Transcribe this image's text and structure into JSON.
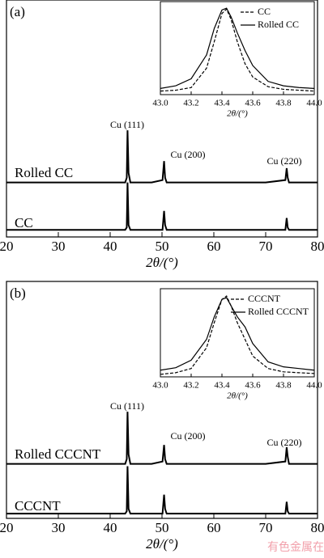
{
  "chart_data": [
    {
      "type": "line",
      "panel": "(a)",
      "xlabel": "2θ/(°)",
      "xlim": [
        20,
        80
      ],
      "xticks": [
        20,
        30,
        40,
        50,
        60,
        70,
        80
      ],
      "ylim": [
        0,
        100
      ],
      "x": [
        20,
        30,
        40,
        42.9,
        43.2,
        43.35,
        43.55,
        43.9,
        48,
        50.1,
        50.4,
        50.6,
        50.9,
        55,
        60,
        65,
        70,
        73.8,
        74.05,
        74.25,
        74.5,
        78,
        80
      ],
      "series": [
        {
          "name": "CC",
          "color": "#000000",
          "values": [
            3,
            3,
            3,
            3,
            4,
            23,
            5,
            3,
            3,
            3,
            11,
            5,
            3,
            3,
            3,
            3,
            3,
            3,
            8,
            4,
            3,
            3,
            3
          ]
        },
        {
          "name": "Rolled CC",
          "color": "#000000",
          "values": [
            23,
            23,
            23,
            23,
            25,
            45,
            27,
            23,
            23,
            24,
            32,
            25,
            23,
            23,
            23,
            23,
            23,
            24,
            29,
            25,
            23,
            23,
            23
          ]
        }
      ],
      "annotations": [
        "Cu (111)",
        "Cu (200)",
        "Cu (220)"
      ],
      "inset": {
        "type": "line",
        "xlabel": "2θ/(°)",
        "xlim": [
          43.0,
          44.0
        ],
        "ylim": [
          0,
          1
        ],
        "xticks": [
          {
            "value": 43.0,
            "label": "43.0"
          },
          43.2,
          43.4,
          43.6,
          43.8,
          {
            "value": 44.0,
            "label": "44.0"
          }
        ],
        "x": [
          43.0,
          43.1,
          43.2,
          43.3,
          43.35,
          43.4,
          43.43,
          43.46,
          43.5,
          43.55,
          43.6,
          43.7,
          43.8,
          43.9,
          44.0
        ],
        "series": [
          {
            "name": "CC",
            "color": "#000000",
            "dash": "dashed",
            "values": [
              0.04,
              0.05,
              0.08,
              0.3,
              0.6,
              0.92,
              0.97,
              0.85,
              0.6,
              0.35,
              0.2,
              0.09,
              0.06,
              0.05,
              0.04
            ]
          },
          {
            "name": "Rolled CC",
            "color": "#000000",
            "dash": "solid",
            "values": [
              0.07,
              0.1,
              0.18,
              0.45,
              0.75,
              0.96,
              0.98,
              0.88,
              0.7,
              0.5,
              0.33,
              0.15,
              0.1,
              0.08,
              0.07
            ]
          }
        ]
      }
    },
    {
      "type": "line",
      "panel": "(b)",
      "xlabel": "2θ/(°)",
      "xlim": [
        20,
        80
      ],
      "xticks": [
        20,
        30,
        40,
        50,
        60,
        70,
        80
      ],
      "ylim": [
        0,
        100
      ],
      "x": [
        20,
        30,
        40,
        42.9,
        43.2,
        43.35,
        43.55,
        43.9,
        48,
        50.1,
        50.4,
        50.6,
        50.9,
        55,
        60,
        65,
        70,
        73.8,
        74.05,
        74.25,
        74.5,
        78,
        80
      ],
      "series": [
        {
          "name": "CCCNT",
          "color": "#000000",
          "values": [
            2,
            2,
            2,
            2,
            3,
            22,
            4,
            2,
            2,
            2,
            10,
            4,
            2,
            2,
            2,
            2,
            2,
            2,
            7,
            3,
            2,
            2,
            2
          ]
        },
        {
          "name": "Rolled CCCNT",
          "color": "#000000",
          "values": [
            23,
            23,
            23,
            23,
            25,
            45,
            27,
            23,
            23,
            24,
            31,
            25,
            23,
            23,
            23,
            23,
            23,
            24,
            30,
            26,
            23,
            23,
            23
          ]
        }
      ],
      "annotations": [
        "Cu (111)",
        "Cu (200)",
        "Cu (220)"
      ],
      "inset": {
        "type": "line",
        "xlabel": "2θ/(°)",
        "xlim": [
          43.0,
          44.0
        ],
        "ylim": [
          0,
          1
        ],
        "xticks": [
          {
            "value": 43.0,
            "label": "43.0"
          },
          43.2,
          43.4,
          43.6,
          43.8,
          {
            "value": 44.0,
            "label": "44.0"
          }
        ],
        "x": [
          43.0,
          43.1,
          43.2,
          43.3,
          43.35,
          43.4,
          43.43,
          43.46,
          43.5,
          43.55,
          43.6,
          43.7,
          43.8,
          43.9,
          44.0
        ],
        "series": [
          {
            "name": "CCCNT",
            "color": "#000000",
            "dash": "dashed",
            "values": [
              0.03,
              0.05,
              0.1,
              0.35,
              0.65,
              0.93,
              0.97,
              0.85,
              0.65,
              0.45,
              0.25,
              0.1,
              0.06,
              0.05,
              0.04
            ]
          },
          {
            "name": "Rolled CCCNT",
            "color": "#000000",
            "dash": "solid",
            "values": [
              0.08,
              0.11,
              0.2,
              0.45,
              0.72,
              0.93,
              0.95,
              0.85,
              0.72,
              0.6,
              0.4,
              0.18,
              0.12,
              0.1,
              0.08
            ]
          }
        ]
      }
    }
  ],
  "watermark": "有色金属在线"
}
